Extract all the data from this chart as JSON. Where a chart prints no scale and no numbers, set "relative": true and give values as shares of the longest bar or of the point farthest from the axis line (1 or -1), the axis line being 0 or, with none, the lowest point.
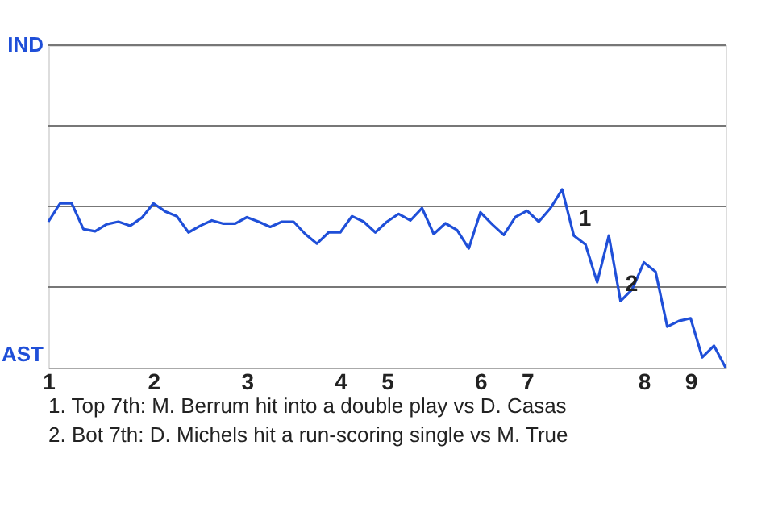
{
  "chart_data": {
    "type": "line",
    "relative": true,
    "categories": [
      "1",
      null,
      null,
      null,
      null,
      null,
      null,
      null,
      null,
      "2",
      null,
      null,
      null,
      null,
      null,
      null,
      null,
      "3",
      null,
      null,
      null,
      null,
      null,
      null,
      null,
      "4",
      null,
      null,
      null,
      "5",
      null,
      null,
      null,
      null,
      null,
      null,
      null,
      "6",
      null,
      null,
      null,
      "7",
      null,
      null,
      null,
      null,
      null,
      null,
      null,
      null,
      null,
      "8",
      null,
      null,
      null,
      "9",
      null,
      null,
      null
    ],
    "series": [
      {
        "color": "#1f4fd8",
        "values": [
          0.819,
          0.922,
          0.922,
          0.778,
          0.765,
          0.805,
          0.819,
          0.796,
          0.841,
          0.922,
          0.877,
          0.85,
          0.759,
          0.796,
          0.826,
          0.808,
          0.808,
          0.844,
          0.819,
          0.79,
          0.819,
          0.819,
          0.75,
          0.696,
          0.759,
          0.759,
          0.85,
          0.819,
          0.759,
          0.819,
          0.863,
          0.826,
          0.895,
          0.75,
          0.81,
          0.772,
          0.669,
          0.872,
          0.805,
          0.745,
          0.846,
          0.881,
          0.819,
          0.895,
          1,
          0.741,
          0.691,
          0.479,
          0.741,
          0.374,
          0.439,
          0.591,
          0.539,
          0.23,
          0.262,
          0.277,
          0.058,
          0.123,
          0
        ]
      }
    ],
    "ref_lines": [
      {
        "axis": "y",
        "value": 0.4525,
        "color": "#777777"
      },
      {
        "axis": "y",
        "value": 0.905,
        "color": "#777777"
      },
      {
        "axis": "y",
        "value": 1.3575,
        "color": "#777777"
      },
      {
        "axis": "y",
        "value": 1.81,
        "color": "#777777"
      }
    ],
    "annotations": [
      "IND",
      "AST",
      {
        "text": "1",
        "y": 0.741
      },
      {
        "text": "2",
        "y": 0.374
      },
      "1. Top 7th: M. Berrum hit into a double play vs D. Casas",
      "2. Bot 7th: D. Michels hit a run-scoring single vs M. True"
    ]
  }
}
